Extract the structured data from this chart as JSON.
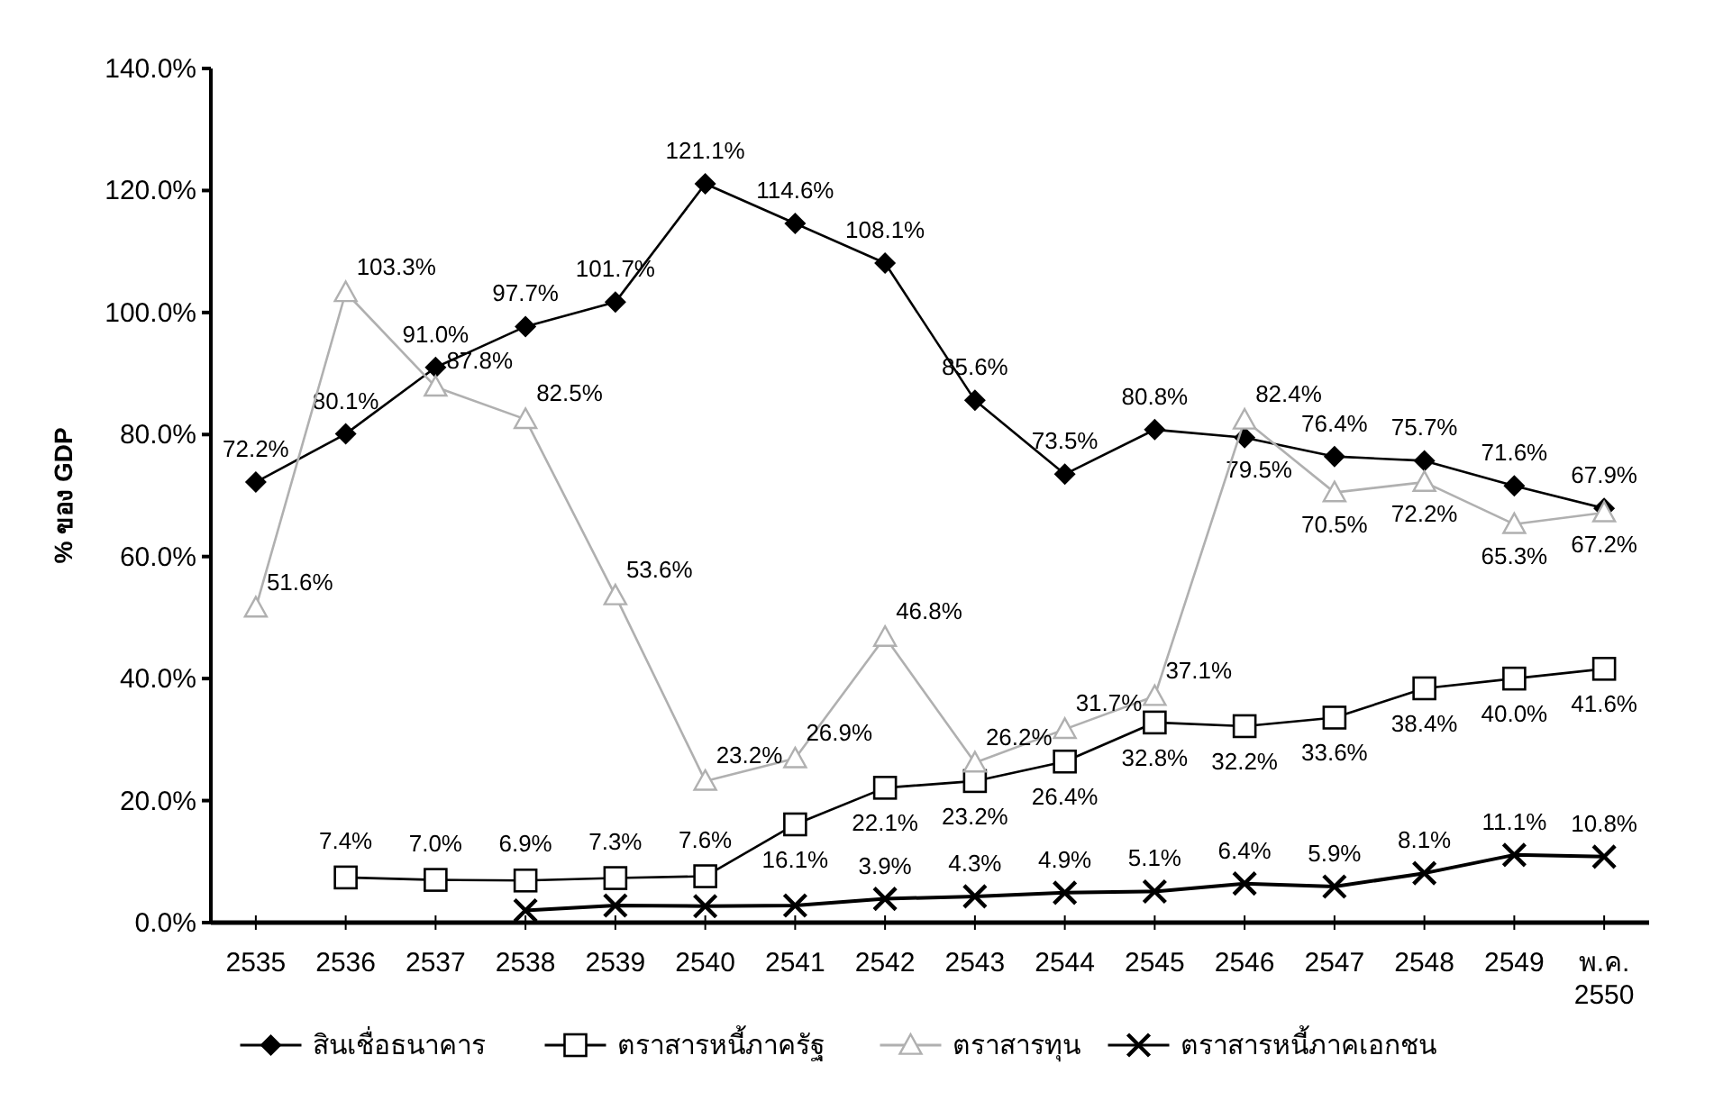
{
  "chart_data": {
    "type": "line",
    "ylabel": "% ของ GDP",
    "categories": [
      "2535",
      "2536",
      "2537",
      "2538",
      "2539",
      "2540",
      "2541",
      "2542",
      "2543",
      "2544",
      "2545",
      "2546",
      "2547",
      "2548",
      "2549",
      "พ.ค.\n2550"
    ],
    "ylim": [
      0,
      140
    ],
    "yticks": [
      {
        "value": 0,
        "label": "0.0%"
      },
      {
        "value": 20,
        "label": "20.0%"
      },
      {
        "value": 40,
        "label": "40.0%"
      },
      {
        "value": 60,
        "label": "60.0%"
      },
      {
        "value": 80,
        "label": "80.0%"
      },
      {
        "value": 100,
        "label": "100.0%"
      },
      {
        "value": 120,
        "label": "120.0%"
      },
      {
        "value": 140,
        "label": "140.0%"
      }
    ],
    "grid": false,
    "legend": "bottom",
    "series": [
      {
        "name": "สินเชื่อธนาคาร",
        "color": "#000000",
        "marker": "diamond",
        "values": [
          72.2,
          80.1,
          91.0,
          97.7,
          101.7,
          121.1,
          114.6,
          108.1,
          85.6,
          73.5,
          80.8,
          79.5,
          76.4,
          75.7,
          71.6,
          67.9
        ],
        "value_labels": [
          "72.2%",
          "80.1%",
          "91.0%",
          "97.7%",
          "101.7%",
          "121.1%",
          "114.6%",
          "108.1%",
          "85.6%",
          "73.5%",
          "80.8%",
          "79.5%",
          "76.4%",
          "75.7%",
          "71.6%",
          "67.9%"
        ]
      },
      {
        "name": "ตราสารหนี้ภาครัฐ",
        "color": "#000000",
        "marker": "square",
        "values": [
          null,
          7.4,
          7.0,
          6.9,
          7.3,
          7.6,
          16.1,
          22.1,
          23.2,
          26.4,
          32.8,
          32.2,
          33.6,
          38.4,
          40.0,
          41.6
        ],
        "value_labels": [
          null,
          "7.4%",
          "7.0%",
          "6.9%",
          "7.3%",
          "7.6%",
          "16.1%",
          "22.1%",
          "23.2%",
          "26.4%",
          "32.8%",
          "32.2%",
          "33.6%",
          "38.4%",
          "40.0%",
          "41.6%"
        ]
      },
      {
        "name": "ตราสารทุน",
        "color": "#b0b0b0",
        "marker": "triangle",
        "values": [
          51.6,
          103.3,
          87.8,
          82.5,
          53.6,
          23.2,
          26.9,
          46.8,
          26.2,
          31.7,
          37.1,
          82.4,
          70.5,
          72.2,
          65.3,
          67.2
        ],
        "value_labels": [
          "51.6%",
          "103.3%",
          "87.8%",
          "82.5%",
          "53.6%",
          "23.2%",
          "26.9%",
          "46.8%",
          "26.2%",
          "31.7%",
          "37.1%",
          "82.4%",
          "70.5%",
          "72.2%",
          "65.3%",
          "67.2%"
        ]
      },
      {
        "name": "ตราสารหนี้ภาคเอกชน",
        "color": "#000000",
        "marker": "cross",
        "values": [
          null,
          null,
          null,
          2.0,
          2.8,
          2.7,
          2.8,
          3.9,
          4.3,
          4.9,
          5.1,
          6.4,
          5.9,
          8.1,
          11.1,
          10.8
        ],
        "value_labels": [
          null,
          null,
          null,
          null,
          null,
          null,
          null,
          "3.9%",
          "4.3%",
          "4.9%",
          "5.1%",
          "6.4%",
          "5.9%",
          "8.1%",
          "11.1%",
          "10.8%"
        ]
      }
    ]
  }
}
